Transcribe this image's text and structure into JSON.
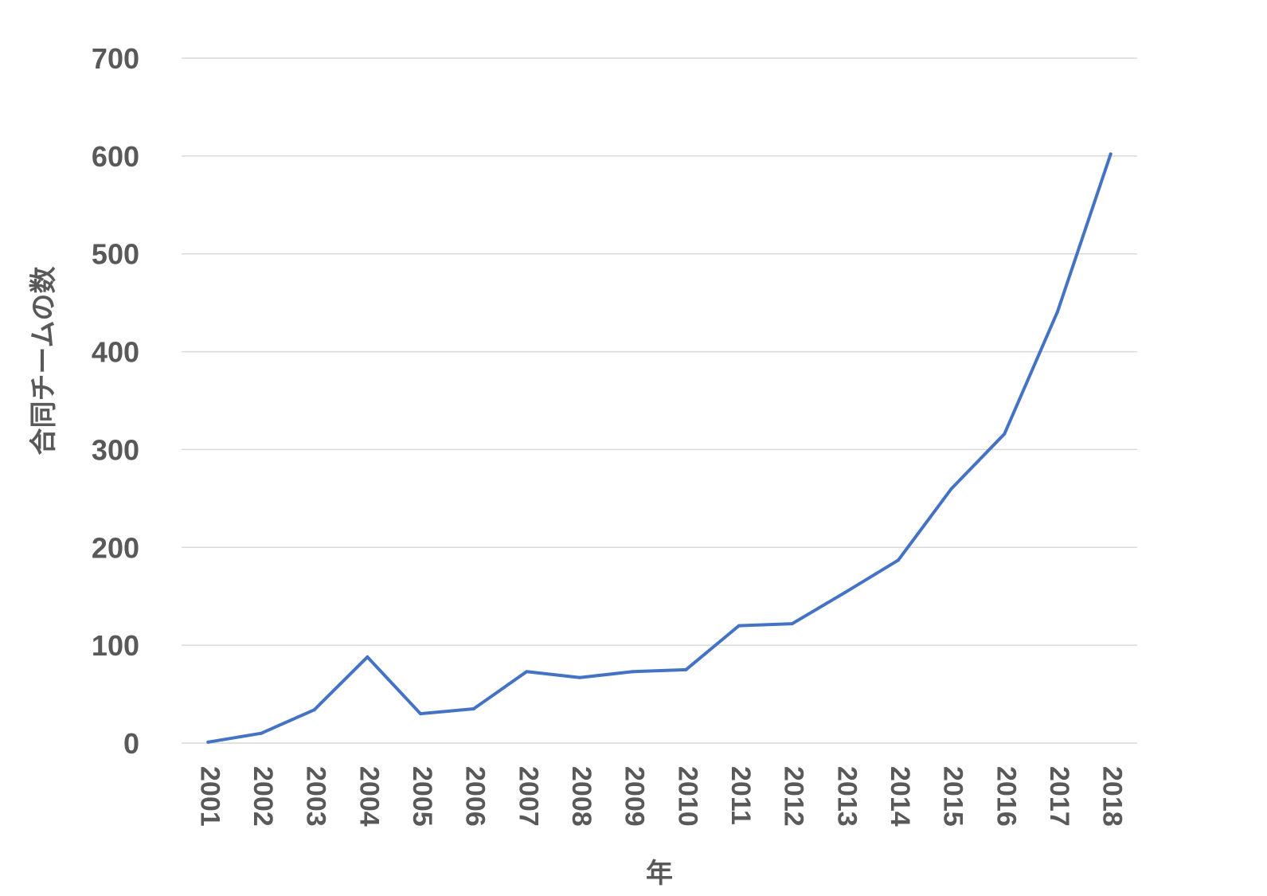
{
  "chart_data": {
    "type": "line",
    "title": "",
    "xlabel": "年",
    "ylabel": "合同チームの数",
    "ylim": [
      0,
      700
    ],
    "yticks": [
      "0",
      "100",
      "200",
      "300",
      "400",
      "500",
      "600",
      "700"
    ],
    "categories": [
      "2001",
      "2002",
      "2003",
      "2004",
      "2005",
      "2006",
      "2007",
      "2008",
      "2009",
      "2010",
      "2011",
      "2012",
      "2013",
      "2014",
      "2015",
      "2016",
      "2017",
      "2018"
    ],
    "series": [
      {
        "color": "#4472c4",
        "values": [
          1,
          10,
          34,
          88,
          30,
          35,
          73,
          67,
          73,
          75,
          120,
          122,
          154,
          187,
          260,
          316,
          441,
          602
        ]
      }
    ],
    "grid": true,
    "legend": "none"
  }
}
